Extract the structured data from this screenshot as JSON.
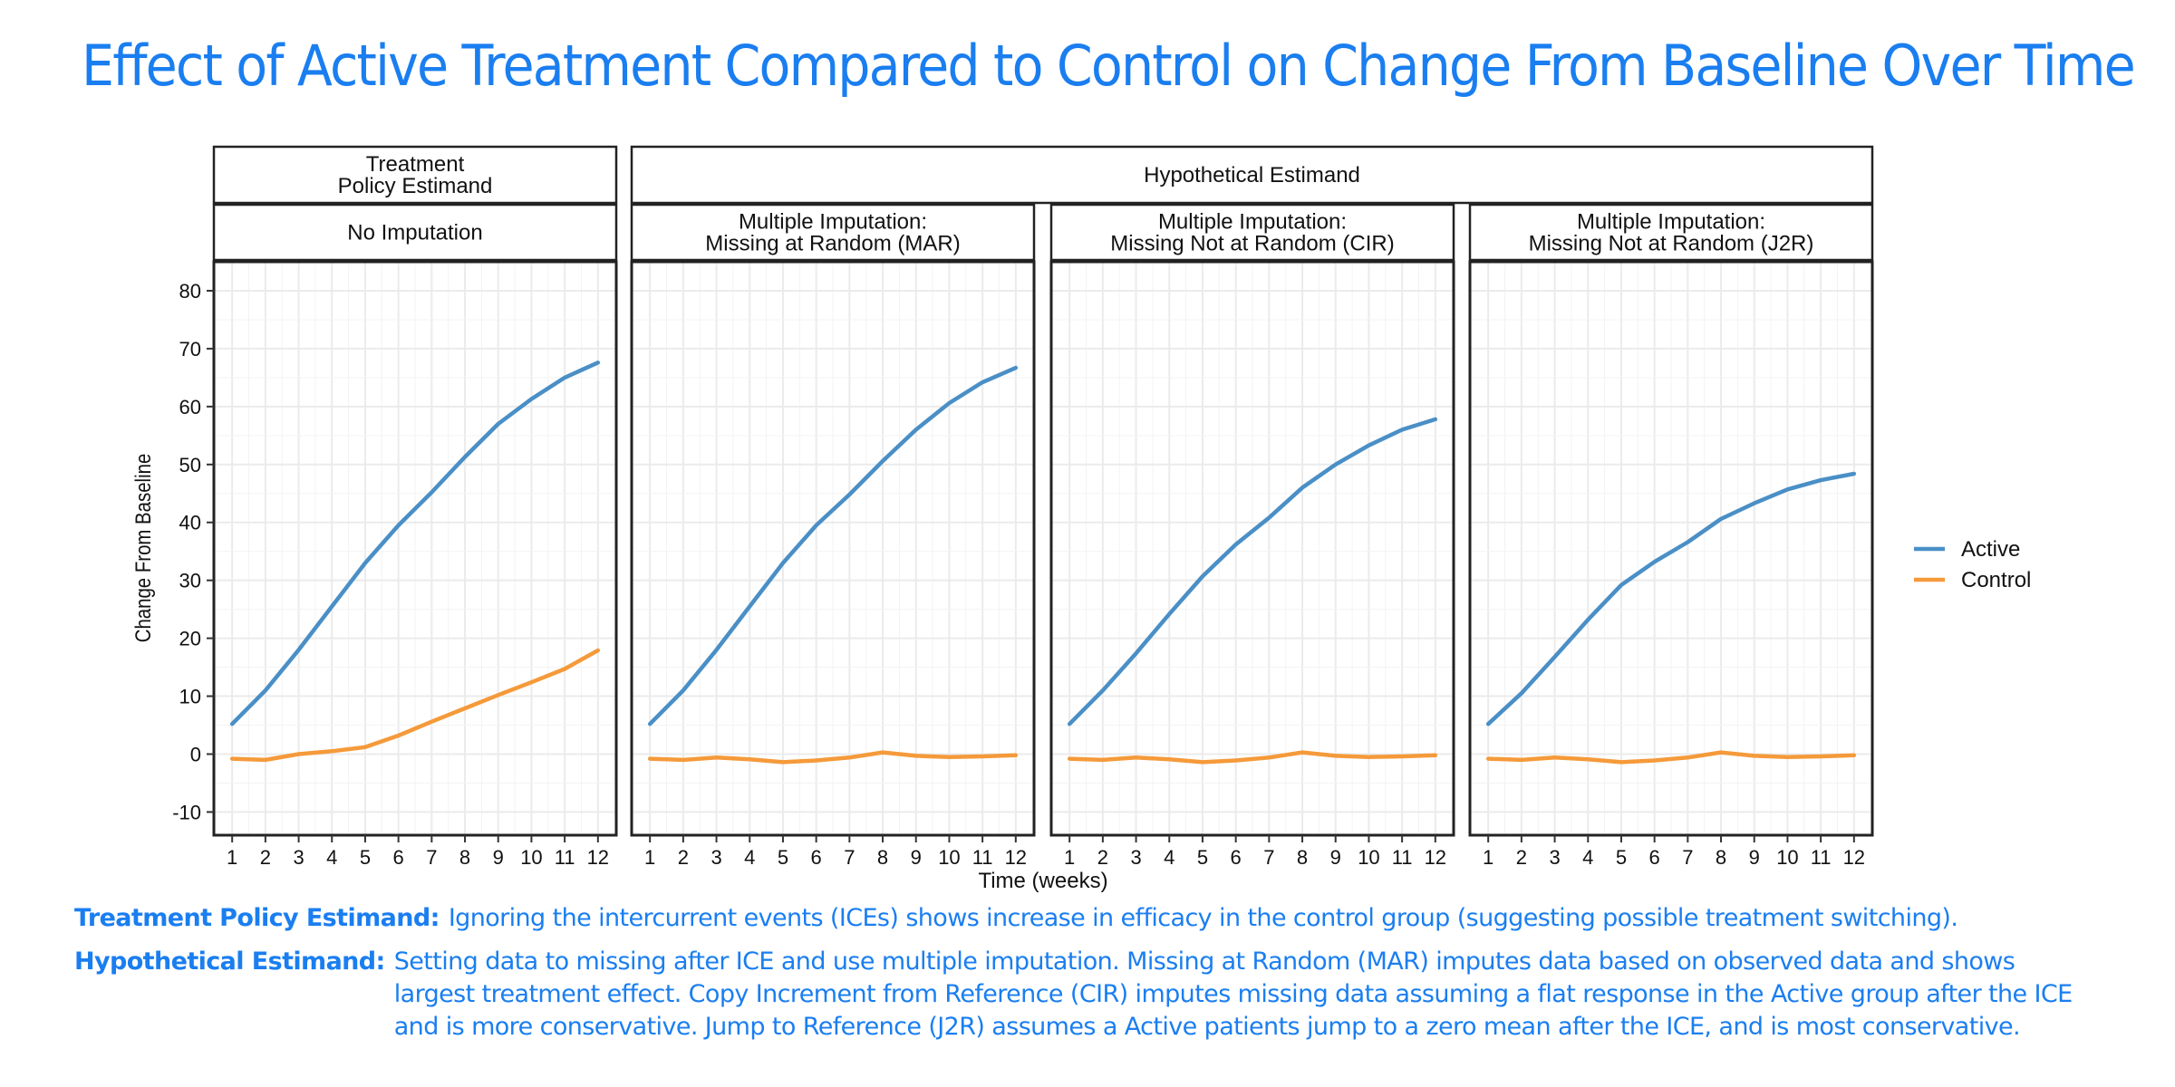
{
  "title": "Effect of Active Treatment Compared to Control on Change From Baseline Over Time",
  "chart_data": {
    "type": "line",
    "xlabel": "Time (weeks)",
    "ylabel": "Change From Baseline",
    "x": [
      1,
      2,
      3,
      4,
      5,
      6,
      7,
      8,
      9,
      10,
      11,
      12
    ],
    "ylim": [
      -14,
      85
    ],
    "yticks": [
      -10,
      0,
      10,
      20,
      30,
      40,
      50,
      60,
      70,
      80
    ],
    "grid": true,
    "legend_position": "right",
    "colors": {
      "Active": "#4a8fc6",
      "Control": "#f59a3a"
    },
    "estimand_groups": [
      {
        "label": "Treatment\nPolicy Estimand",
        "panels": [
          0
        ]
      },
      {
        "label": "Hypothetical Estimand",
        "panels": [
          1,
          2,
          3
        ]
      }
    ],
    "panels": [
      {
        "title": "No Imputation",
        "series": [
          {
            "name": "Active",
            "values": [
              5.2,
              11,
              18,
              25.5,
              33,
              39.5,
              45.2,
              51.3,
              57,
              61.3,
              65,
              67.6
            ]
          },
          {
            "name": "Control",
            "values": [
              -0.8,
              -1,
              0,
              0.5,
              1.2,
              3.2,
              5.6,
              7.9,
              10.2,
              12.4,
              14.7,
              17.9
            ]
          }
        ]
      },
      {
        "title": "Multiple Imputation:\nMissing at Random (MAR)",
        "series": [
          {
            "name": "Active",
            "values": [
              5.2,
              11,
              18,
              25.5,
              33,
              39.5,
              44.8,
              50.6,
              56,
              60.6,
              64.2,
              66.7
            ]
          },
          {
            "name": "Control",
            "values": [
              -0.8,
              -1,
              -0.6,
              -0.9,
              -1.4,
              -1.1,
              -0.6,
              0.3,
              -0.3,
              -0.5,
              -0.4,
              -0.2
            ]
          }
        ]
      },
      {
        "title": "Multiple Imputation:\nMissing Not at Random (CIR)",
        "series": [
          {
            "name": "Active",
            "values": [
              5.2,
              11,
              17.4,
              24.2,
              30.7,
              36.2,
              40.8,
              46,
              50,
              53.3,
              56,
              57.8
            ]
          },
          {
            "name": "Control",
            "values": [
              -0.8,
              -1,
              -0.6,
              -0.9,
              -1.4,
              -1.1,
              -0.6,
              0.3,
              -0.3,
              -0.5,
              -0.4,
              -0.2
            ]
          }
        ]
      },
      {
        "title": "Multiple Imputation:\nMissing Not at Random (J2R)",
        "series": [
          {
            "name": "Active",
            "values": [
              5.2,
              10.5,
              16.8,
              23.2,
              29.2,
              33.2,
              36.6,
              40.6,
              43.3,
              45.7,
              47.3,
              48.4
            ]
          },
          {
            "name": "Control",
            "values": [
              -0.8,
              -1,
              -0.6,
              -0.9,
              -1.4,
              -1.1,
              -0.6,
              0.3,
              -0.3,
              -0.5,
              -0.4,
              -0.2
            ]
          }
        ]
      }
    ]
  },
  "notes": {
    "treatment_label": "Treatment Policy Estimand:",
    "treatment_text": "Ignoring the intercurrent events (ICEs) shows increase in efficacy in the control group (suggesting possible treatment switching).",
    "hypothetical_label": "Hypothetical Estimand:",
    "hypothetical_text": "Setting data to missing after ICE and use multiple imputation. Missing at Random (MAR) imputes data based on observed data and shows largest treatment effect. Copy Increment from Reference (CIR) imputes missing data assuming a flat response in the Active group after the ICE and is more conservative. Jump to Reference (J2R) assumes a Active patients jump to a zero mean after the ICE, and is most conservative."
  }
}
